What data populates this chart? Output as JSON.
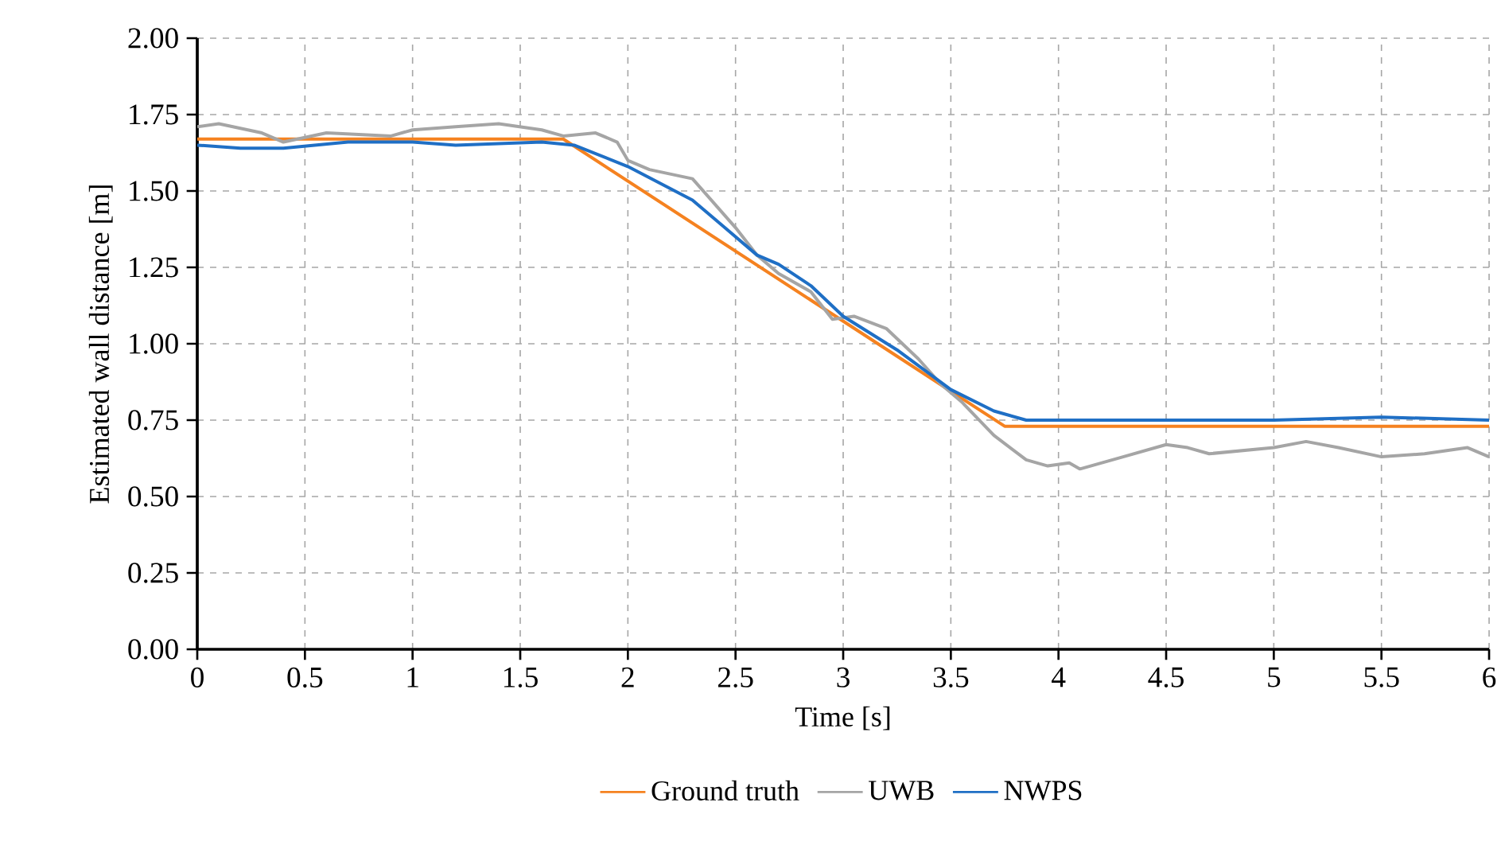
{
  "chart_data": {
    "type": "line",
    "xlabel": "Time [s]",
    "ylabel": "Estimated wall distance [m]",
    "xlim": [
      0,
      6
    ],
    "ylim": [
      0,
      2
    ],
    "xticks": [
      0,
      0.5,
      1,
      1.5,
      2,
      2.5,
      3,
      3.5,
      4,
      4.5,
      5,
      5.5,
      6
    ],
    "yticks": [
      {
        "value": 0,
        "label": "0.00"
      },
      {
        "value": 0.25,
        "label": "0.25"
      },
      {
        "value": 0.5,
        "label": "0.50"
      },
      {
        "value": 0.75,
        "label": "0.75"
      },
      {
        "value": 1,
        "label": "1.00"
      },
      {
        "value": 1.25,
        "label": "1.25"
      },
      {
        "value": 1.5,
        "label": "1.50"
      },
      {
        "value": 1.75,
        "label": "1.75"
      },
      {
        "value": 2,
        "label": "2.00"
      }
    ],
    "grid": true,
    "legend": "bottom",
    "marker": "none",
    "line_style": "solid",
    "series": [
      {
        "name": "Ground truth",
        "color": "#f58220",
        "x": [
          0,
          1.7,
          3.75,
          6
        ],
        "values": [
          1.67,
          1.67,
          0.73,
          0.73
        ]
      },
      {
        "name": "UWB",
        "color": "#a5a5a5",
        "x": [
          0,
          0.1,
          0.3,
          0.4,
          0.6,
          0.9,
          1.0,
          1.2,
          1.4,
          1.6,
          1.7,
          1.85,
          1.95,
          2.0,
          2.1,
          2.3,
          2.4,
          2.5,
          2.6,
          2.7,
          2.85,
          2.95,
          3.05,
          3.2,
          3.35,
          3.45,
          3.55,
          3.7,
          3.85,
          3.95,
          4.05,
          4.1,
          4.3,
          4.5,
          4.6,
          4.7,
          5.0,
          5.15,
          5.3,
          5.5,
          5.7,
          5.9,
          6.0
        ],
        "values": [
          1.71,
          1.72,
          1.69,
          1.66,
          1.69,
          1.68,
          1.7,
          1.71,
          1.72,
          1.7,
          1.68,
          1.69,
          1.66,
          1.6,
          1.57,
          1.54,
          1.46,
          1.38,
          1.29,
          1.23,
          1.17,
          1.08,
          1.09,
          1.05,
          0.95,
          0.87,
          0.81,
          0.7,
          0.62,
          0.6,
          0.61,
          0.59,
          0.63,
          0.67,
          0.66,
          0.64,
          0.66,
          0.68,
          0.66,
          0.63,
          0.64,
          0.66,
          0.63
        ]
      },
      {
        "name": "NWPS",
        "color": "#1f6fc5",
        "x": [
          0,
          0.2,
          0.4,
          0.7,
          1.0,
          1.2,
          1.6,
          1.75,
          2.0,
          2.3,
          2.45,
          2.6,
          2.7,
          2.85,
          3.0,
          3.25,
          3.5,
          3.7,
          3.85,
          4.5,
          5.0,
          5.5,
          6.0
        ],
        "values": [
          1.65,
          1.64,
          1.64,
          1.66,
          1.66,
          1.65,
          1.66,
          1.65,
          1.58,
          1.47,
          1.38,
          1.29,
          1.26,
          1.19,
          1.09,
          0.98,
          0.85,
          0.78,
          0.75,
          0.75,
          0.75,
          0.76,
          0.75
        ]
      }
    ]
  }
}
